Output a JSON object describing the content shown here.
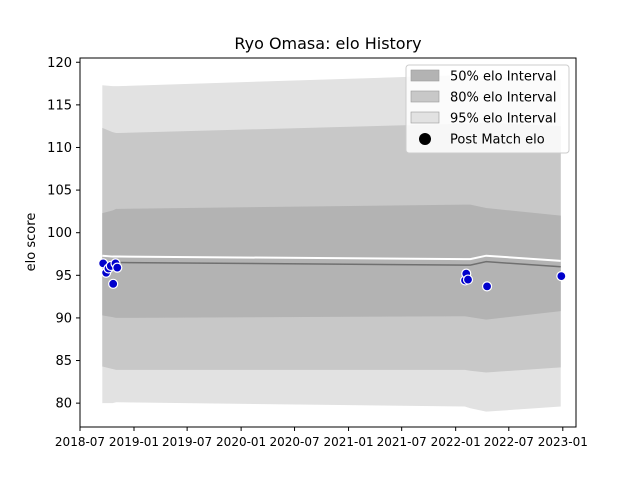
{
  "chart_data": {
    "type": "area",
    "title": "Ryo Omasa: elo History",
    "xlabel": "",
    "ylabel": "elo score",
    "xlim": [
      "2018-07-01",
      "2023-02-15"
    ],
    "ylim": [
      77.2,
      120.5
    ],
    "x_ticks": [
      "2018-07",
      "2019-01",
      "2019-07",
      "2020-01",
      "2020-07",
      "2021-01",
      "2021-07",
      "2022-01",
      "2022-07",
      "2023-01"
    ],
    "y_ticks": [
      80,
      85,
      90,
      95,
      100,
      105,
      110,
      115,
      120
    ],
    "grid": false,
    "legend_position": "top-right",
    "legend": [
      {
        "label": "50% elo Interval",
        "color": "#b3b3b3",
        "kind": "patch"
      },
      {
        "label": "80% elo Interval",
        "color": "#c8c8c8",
        "kind": "patch"
      },
      {
        "label": "95% elo Interval",
        "color": "#e2e2e2",
        "kind": "patch"
      },
      {
        "label": "Post Match elo",
        "color": "#000000",
        "kind": "marker"
      }
    ],
    "x": [
      "2018-09-15",
      "2018-10-20",
      "2018-11-01",
      "2018-11-10",
      "2022-02-01",
      "2022-02-20",
      "2022-04-15",
      "2022-12-25"
    ],
    "series": [
      {
        "name": "95% elo Interval",
        "type": "band",
        "color": "#e2e2e2",
        "lower": [
          80.0,
          80.0,
          80.1,
          80.1,
          79.6,
          79.4,
          79.0,
          79.6
        ],
        "upper": [
          117.3,
          117.2,
          117.2,
          117.2,
          118.5,
          118.4,
          118.3,
          118.0
        ]
      },
      {
        "name": "80% elo Interval",
        "type": "band",
        "color": "#c8c8c8",
        "lower": [
          84.3,
          84.0,
          83.9,
          83.9,
          83.9,
          83.8,
          83.6,
          84.2
        ],
        "upper": [
          112.3,
          111.8,
          111.7,
          111.7,
          112.8,
          112.8,
          112.9,
          112.5
        ]
      },
      {
        "name": "50% elo Interval",
        "type": "band",
        "color": "#b3b3b3",
        "lower": [
          90.3,
          90.1,
          90.0,
          90.0,
          90.2,
          90.1,
          89.8,
          90.8
        ],
        "upper": [
          102.3,
          102.6,
          102.8,
          102.8,
          103.3,
          103.3,
          102.9,
          102.0
        ]
      },
      {
        "name": "",
        "type": "line",
        "color": "#707070",
        "values": [
          96.6,
          96.5,
          96.5,
          96.5,
          96.2,
          96.2,
          96.6,
          96.0
        ]
      }
    ],
    "points": {
      "name": "Post Match elo",
      "color": "#0000cc",
      "x": [
        "2018-09-18",
        "2018-09-28",
        "2018-10-06",
        "2018-10-14",
        "2018-10-22",
        "2018-10-30",
        "2018-11-05",
        "2022-02-02",
        "2022-02-06",
        "2022-02-12",
        "2022-04-18",
        "2022-12-27"
      ],
      "values": [
        96.4,
        95.3,
        95.8,
        96.1,
        94.0,
        96.4,
        95.9,
        94.4,
        95.2,
        94.5,
        93.7,
        94.9
      ]
    }
  }
}
